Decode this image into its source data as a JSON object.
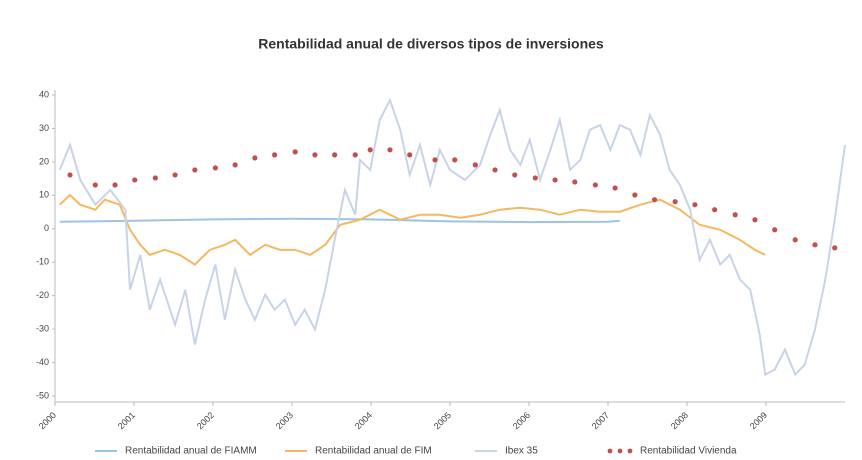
{
  "chart_data": {
    "type": "line",
    "title": "Rentabilidad anual de diversos tipos de inversiones",
    "xlim": [
      2000,
      2010
    ],
    "xticks": [
      2000,
      2001,
      2002,
      2003,
      2004,
      2005,
      2006,
      2007,
      2008,
      2009
    ],
    "ylim": [
      -50,
      40
    ],
    "yticks": [
      40,
      30,
      20,
      10,
      0,
      -10,
      -20,
      -30,
      -40,
      -50
    ],
    "legend": "bottom",
    "series": [
      {
        "name": "Rentabilidad anual de FIAMM",
        "color": "#9cc3e6",
        "style": "line",
        "x": [
          2000.06,
          2001,
          2002,
          2003,
          2004,
          2005,
          2006,
          2007,
          2007.15
        ],
        "values": [
          2.1,
          2.4,
          2.8,
          3.0,
          2.8,
          2.2,
          2.0,
          2.1,
          2.4
        ]
      },
      {
        "name": "Rentabilidad anual de FIM",
        "color": "#f4b860",
        "style": "line",
        "x": [
          2000.06,
          2000.19,
          2000.32,
          2000.51,
          2000.63,
          2000.82,
          2000.95,
          2001.08,
          2001.2,
          2001.39,
          2001.58,
          2001.77,
          2001.96,
          2002.15,
          2002.28,
          2002.47,
          2002.66,
          2002.85,
          2003.04,
          2003.23,
          2003.42,
          2003.61,
          2003.86,
          2004.11,
          2004.37,
          2004.62,
          2004.87,
          2005.13,
          2005.38,
          2005.63,
          2005.89,
          2006.14,
          2006.39,
          2006.65,
          2006.9,
          2007.15,
          2007.41,
          2007.66,
          2007.91,
          2008.16,
          2008.42,
          2008.67,
          2008.86,
          2008.99
        ],
        "values": [
          7.2,
          10.1,
          7.2,
          5.7,
          8.7,
          7.2,
          -0.3,
          -4.8,
          -7.8,
          -6.3,
          -7.8,
          -10.7,
          -6.3,
          -4.8,
          -3.3,
          -7.8,
          -4.8,
          -6.3,
          -6.3,
          -7.8,
          -4.8,
          1.2,
          2.7,
          5.7,
          2.7,
          4.2,
          4.2,
          3.3,
          4.2,
          5.7,
          6.3,
          5.7,
          4.2,
          5.7,
          5.1,
          5.1,
          7.2,
          8.7,
          5.7,
          1.2,
          -0.3,
          -3.3,
          -6.3,
          -7.8
        ]
      },
      {
        "name": "Ibex 35",
        "color": "#c8d4e6",
        "style": "line",
        "x": [
          2000.06,
          2000.19,
          2000.32,
          2000.51,
          2000.7,
          2000.89,
          2000.95,
          2001.08,
          2001.2,
          2001.33,
          2001.52,
          2001.65,
          2001.77,
          2001.9,
          2002.03,
          2002.15,
          2002.28,
          2002.41,
          2002.53,
          2002.66,
          2002.78,
          2002.91,
          2003.04,
          2003.16,
          2003.29,
          2003.42,
          2003.54,
          2003.67,
          2003.8,
          2003.86,
          2003.99,
          2004.11,
          2004.24,
          2004.37,
          2004.49,
          2004.62,
          2004.75,
          2004.87,
          2005.0,
          2005.19,
          2005.38,
          2005.51,
          2005.63,
          2005.76,
          2005.89,
          2006.01,
          2006.14,
          2006.27,
          2006.39,
          2006.52,
          2006.65,
          2006.77,
          2006.9,
          2007.03,
          2007.15,
          2007.28,
          2007.41,
          2007.53,
          2007.66,
          2007.78,
          2007.91,
          2008.04,
          2008.16,
          2008.29,
          2008.42,
          2008.54,
          2008.67,
          2008.8,
          2008.92,
          2008.99,
          2009.11,
          2009.24,
          2009.37,
          2009.49,
          2009.62,
          2009.75,
          2009.87,
          2010.0
        ],
        "values": [
          17.6,
          25.1,
          14.6,
          7.2,
          11.6,
          5.7,
          -18.2,
          -7.8,
          -24.2,
          -15.2,
          -28.7,
          -18.2,
          -34.6,
          -21.2,
          -10.7,
          -27.2,
          -12.2,
          -21.2,
          -27.2,
          -19.7,
          -24.2,
          -21.2,
          -28.7,
          -24.2,
          -30.1,
          -18.2,
          -3.3,
          11.6,
          4.2,
          20.6,
          17.6,
          32.5,
          38.5,
          29.6,
          16.1,
          25.1,
          13.1,
          23.6,
          17.6,
          14.6,
          19.1,
          28.1,
          35.5,
          23.6,
          19.1,
          26.6,
          14.6,
          23.6,
          32.5,
          17.6,
          20.6,
          29.6,
          31.0,
          23.6,
          31.0,
          29.6,
          22.1,
          34.0,
          28.1,
          17.6,
          13.1,
          5.7,
          -9.3,
          -3.3,
          -10.7,
          -7.8,
          -15.2,
          -18.2,
          -31.6,
          -43.6,
          -42.1,
          -36.1,
          -43.6,
          -40.6,
          -30.1,
          -15.2,
          2.7,
          25.1
        ]
      },
      {
        "name": "Rentabilidad Vivienda",
        "color": "#c0504d",
        "style": "dots",
        "x": [
          2000.19,
          2000.51,
          2000.76,
          2001.01,
          2001.27,
          2001.52,
          2001.77,
          2002.03,
          2002.28,
          2002.53,
          2002.78,
          2003.04,
          2003.29,
          2003.54,
          2003.8,
          2003.99,
          2004.24,
          2004.49,
          2004.81,
          2005.06,
          2005.32,
          2005.57,
          2005.82,
          2006.08,
          2006.33,
          2006.58,
          2006.84,
          2007.09,
          2007.34,
          2007.59,
          2007.85,
          2008.1,
          2008.35,
          2008.61,
          2008.86,
          2009.11,
          2009.37,
          2009.62,
          2009.87
        ],
        "values": [
          16.1,
          13.1,
          13.1,
          14.6,
          15.2,
          16.1,
          17.6,
          18.2,
          19.1,
          21.2,
          22.1,
          23.0,
          22.1,
          22.1,
          22.1,
          23.6,
          23.6,
          22.1,
          20.6,
          20.6,
          19.1,
          17.6,
          16.1,
          15.2,
          14.6,
          14.0,
          13.1,
          12.2,
          10.1,
          8.7,
          8.1,
          7.2,
          5.7,
          4.2,
          2.7,
          -0.3,
          -3.3,
          -4.8,
          -5.7
        ]
      }
    ]
  }
}
